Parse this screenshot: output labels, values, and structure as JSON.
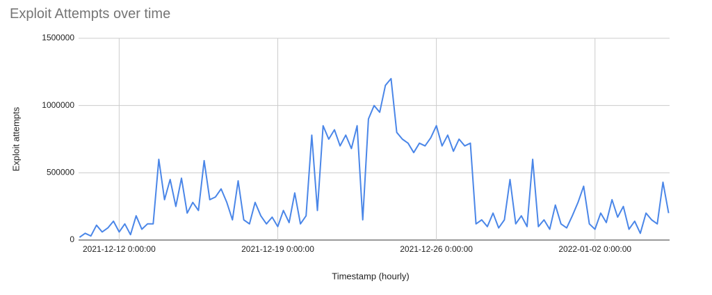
{
  "chart_data": {
    "type": "line",
    "title": "Exploit Attempts over time",
    "x_label": "Timestamp (hourly)",
    "y_label": "Exploit attempts",
    "color": "#4a86e8",
    "grid": true,
    "xlim": [
      "2021-12-10 5:00:00",
      "2022-01-05 7:00:00"
    ],
    "xticks": [
      "2021-12-12 0:00:00",
      "2021-12-19 0:00:00",
      "2021-12-26 0:00:00",
      "2022-01-02 0:00:00"
    ],
    "ylim": [
      0,
      1500000
    ],
    "yticks": [
      0,
      500000,
      1000000,
      1500000
    ],
    "x": [
      "2021-12-10 6:00:00",
      "2021-12-10 12:00:00",
      "2021-12-10 18:00:00",
      "2021-12-11 0:00:00",
      "2021-12-11 6:00:00",
      "2021-12-11 12:00:00",
      "2021-12-11 18:00:00",
      "2021-12-12 0:00:00",
      "2021-12-12 6:00:00",
      "2021-12-12 12:00:00",
      "2021-12-12 18:00:00",
      "2021-12-13 0:00:00",
      "2021-12-13 6:00:00",
      "2021-12-13 12:00:00",
      "2021-12-13 18:00:00",
      "2021-12-14 0:00:00",
      "2021-12-14 6:00:00",
      "2021-12-14 12:00:00",
      "2021-12-14 18:00:00",
      "2021-12-15 0:00:00",
      "2021-12-15 6:00:00",
      "2021-12-15 12:00:00",
      "2021-12-15 18:00:00",
      "2021-12-16 0:00:00",
      "2021-12-16 6:00:00",
      "2021-12-16 12:00:00",
      "2021-12-16 18:00:00",
      "2021-12-17 0:00:00",
      "2021-12-17 6:00:00",
      "2021-12-17 12:00:00",
      "2021-12-17 18:00:00",
      "2021-12-18 0:00:00",
      "2021-12-18 6:00:00",
      "2021-12-18 12:00:00",
      "2021-12-18 18:00:00",
      "2021-12-19 0:00:00",
      "2021-12-19 6:00:00",
      "2021-12-19 12:00:00",
      "2021-12-19 18:00:00",
      "2021-12-20 0:00:00",
      "2021-12-20 6:00:00",
      "2021-12-20 12:00:00",
      "2021-12-20 18:00:00",
      "2021-12-21 0:00:00",
      "2021-12-21 6:00:00",
      "2021-12-21 12:00:00",
      "2021-12-21 18:00:00",
      "2021-12-22 0:00:00",
      "2021-12-22 6:00:00",
      "2021-12-22 12:00:00",
      "2021-12-22 18:00:00",
      "2021-12-23 0:00:00",
      "2021-12-23 6:00:00",
      "2021-12-23 12:00:00",
      "2021-12-23 18:00:00",
      "2021-12-24 0:00:00",
      "2021-12-24 6:00:00",
      "2021-12-24 12:00:00",
      "2021-12-24 18:00:00",
      "2021-12-25 0:00:00",
      "2021-12-25 6:00:00",
      "2021-12-25 12:00:00",
      "2021-12-25 18:00:00",
      "2021-12-26 0:00:00",
      "2021-12-26 6:00:00",
      "2021-12-26 12:00:00",
      "2021-12-26 18:00:00",
      "2021-12-27 0:00:00",
      "2021-12-27 6:00:00",
      "2021-12-27 12:00:00",
      "2021-12-27 18:00:00",
      "2021-12-28 0:00:00",
      "2021-12-28 6:00:00",
      "2021-12-28 12:00:00",
      "2021-12-28 18:00:00",
      "2021-12-29 0:00:00",
      "2021-12-29 6:00:00",
      "2021-12-29 12:00:00",
      "2021-12-29 18:00:00",
      "2021-12-30 0:00:00",
      "2021-12-30 6:00:00",
      "2021-12-30 12:00:00",
      "2021-12-30 18:00:00",
      "2021-12-31 0:00:00",
      "2021-12-31 6:00:00",
      "2021-12-31 12:00:00",
      "2021-12-31 18:00:00",
      "2022-01-01 0:00:00",
      "2022-01-01 6:00:00",
      "2022-01-01 12:00:00",
      "2022-01-01 18:00:00",
      "2022-01-02 0:00:00",
      "2022-01-02 6:00:00",
      "2022-01-02 12:00:00",
      "2022-01-02 18:00:00",
      "2022-01-03 0:00:00",
      "2022-01-03 6:00:00",
      "2022-01-03 12:00:00",
      "2022-01-03 18:00:00",
      "2022-01-04 0:00:00",
      "2022-01-04 6:00:00",
      "2022-01-04 12:00:00",
      "2022-01-04 18:00:00",
      "2022-01-05 0:00:00",
      "2022-01-05 6:00:00"
    ],
    "values": [
      20000,
      50000,
      30000,
      110000,
      60000,
      90000,
      140000,
      60000,
      120000,
      40000,
      180000,
      80000,
      120000,
      120000,
      600000,
      300000,
      450000,
      250000,
      460000,
      200000,
      280000,
      220000,
      590000,
      300000,
      320000,
      380000,
      280000,
      150000,
      440000,
      150000,
      120000,
      280000,
      180000,
      120000,
      170000,
      100000,
      220000,
      130000,
      350000,
      120000,
      180000,
      780000,
      220000,
      850000,
      750000,
      820000,
      700000,
      780000,
      680000,
      850000,
      150000,
      900000,
      1000000,
      950000,
      1150000,
      1200000,
      800000,
      750000,
      720000,
      650000,
      720000,
      700000,
      760000,
      850000,
      700000,
      780000,
      660000,
      750000,
      700000,
      720000,
      120000,
      150000,
      100000,
      200000,
      90000,
      150000,
      450000,
      120000,
      180000,
      100000,
      600000,
      100000,
      150000,
      80000,
      260000,
      120000,
      90000,
      180000,
      280000,
      400000,
      120000,
      80000,
      200000,
      130000,
      300000,
      170000,
      250000,
      80000,
      140000,
      50000,
      200000,
      150000,
      120000,
      430000,
      200000
    ]
  }
}
